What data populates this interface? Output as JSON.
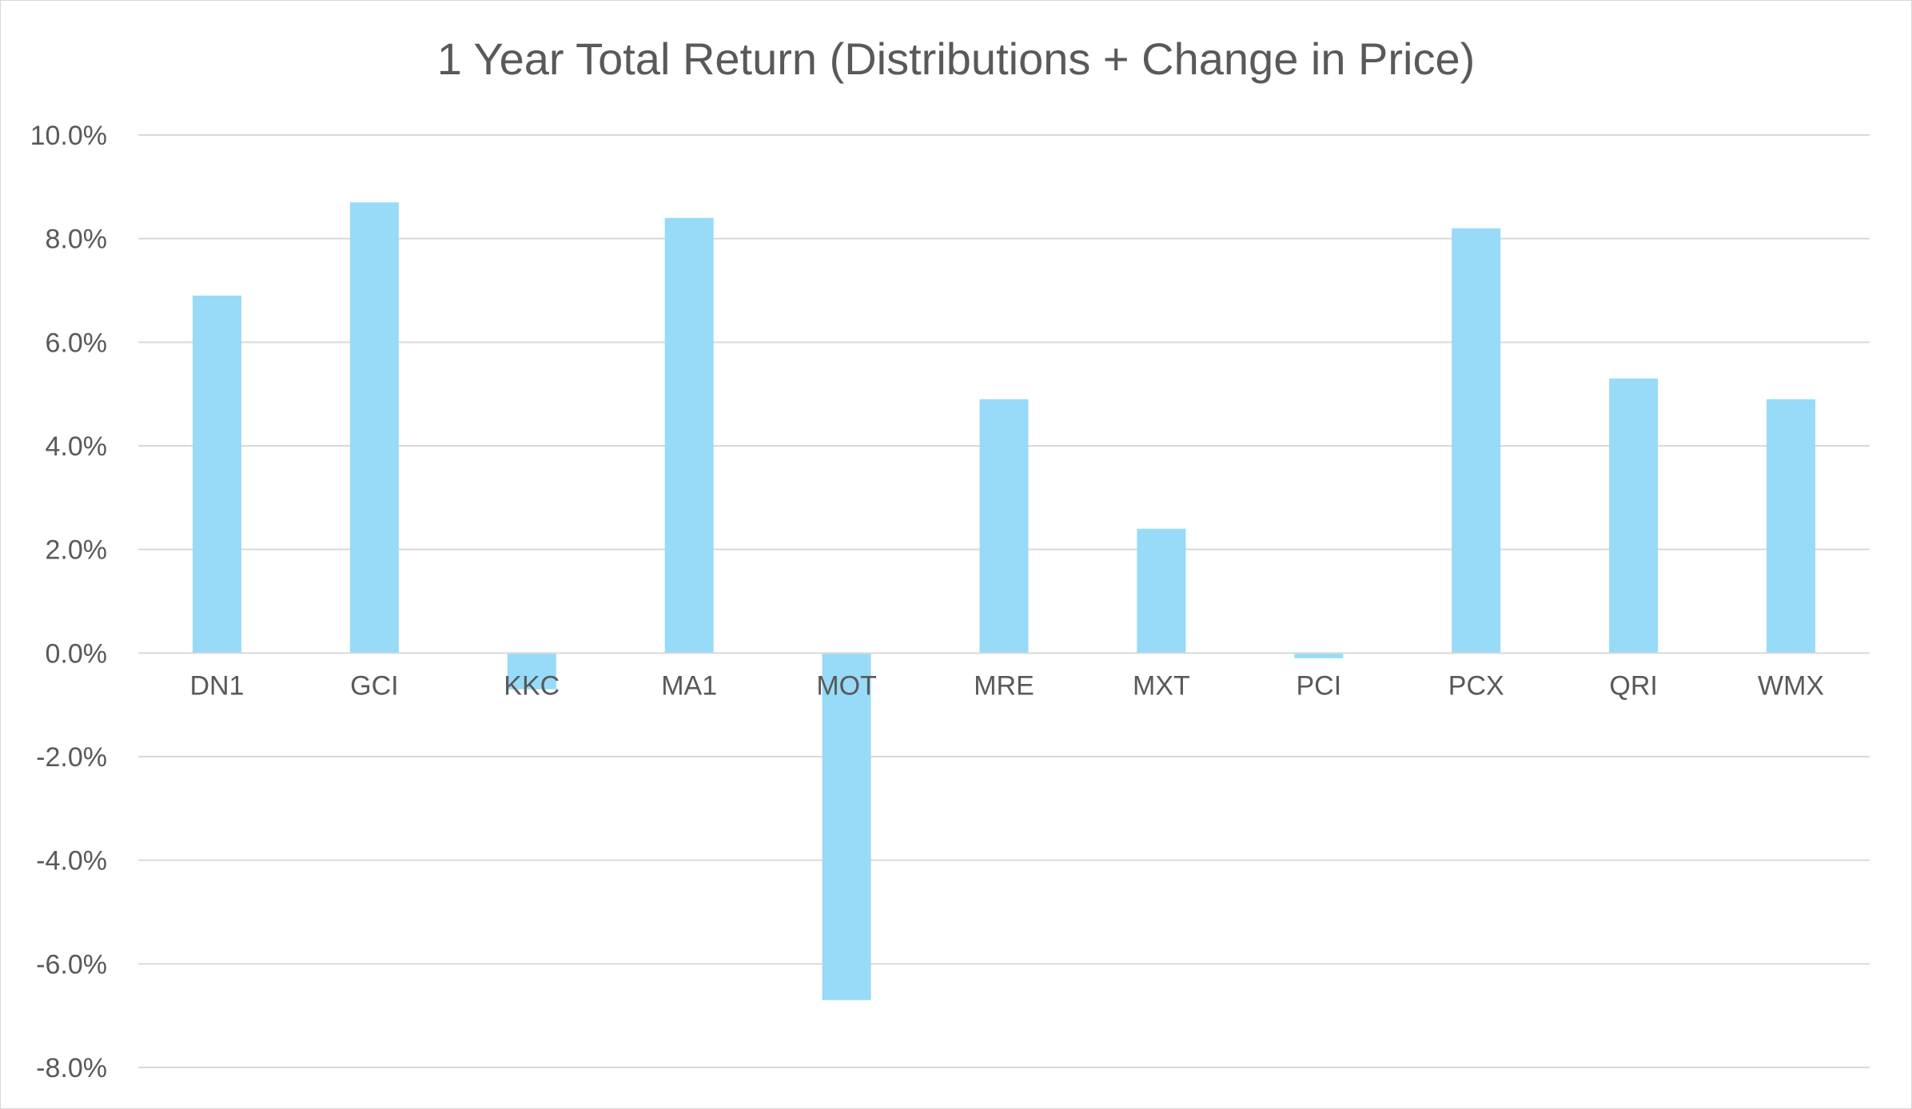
{
  "chart_data": {
    "type": "bar",
    "title": "1 Year Total Return (Distributions + Change in Price)",
    "xlabel": "",
    "ylabel": "",
    "categories": [
      "DN1",
      "GCI",
      "KKC",
      "MA1",
      "MOT",
      "MRE",
      "MXT",
      "PCI",
      "PCX",
      "QRI",
      "WMX"
    ],
    "series": [
      {
        "values": [
          6.9,
          8.7,
          -0.7,
          8.4,
          -6.7,
          4.9,
          2.4,
          -0.1,
          8.2,
          5.3,
          4.9
        ]
      }
    ],
    "ylim": [
      -8,
      10
    ],
    "yticks": [
      10,
      8,
      6,
      4,
      2,
      0,
      -2,
      -4,
      -6,
      -8
    ],
    "ytick_labels": [
      "10.0%",
      "8.0%",
      "6.0%",
      "4.0%",
      "2.0%",
      "0.0%",
      "-2.0%",
      "-4.0%",
      "-6.0%",
      "-8.0%"
    ],
    "grid": true,
    "legend": "none",
    "colors": {
      "bar": "#97dbf8",
      "grid": "#d9d9d9",
      "text": "#595959"
    }
  }
}
